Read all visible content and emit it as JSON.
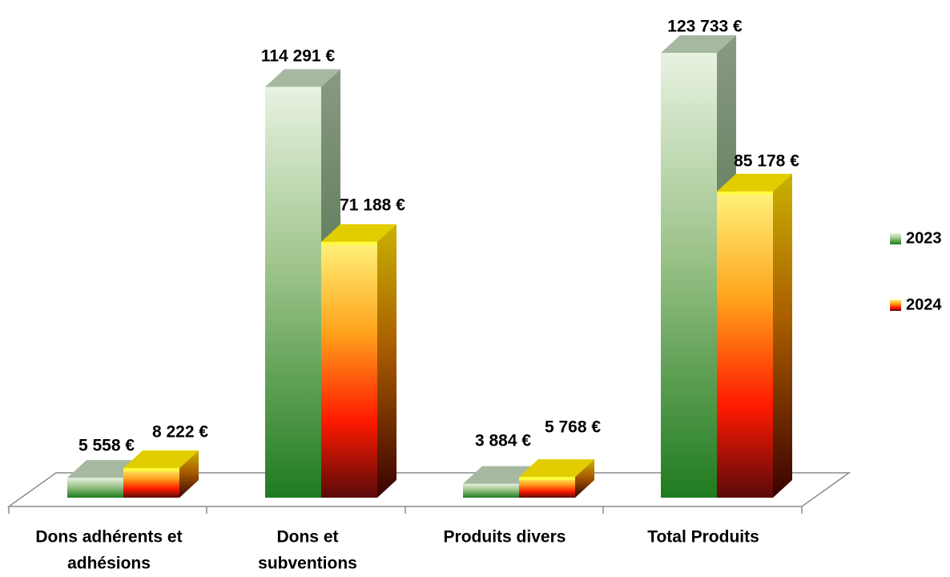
{
  "chart_data": {
    "type": "bar",
    "title": "",
    "xlabel": "",
    "ylabel": "",
    "categories": [
      [
        "Dons adhérents et",
        "adhésions"
      ],
      [
        "Dons et",
        "subventions"
      ],
      [
        "Produits divers"
      ],
      [
        "Total Produits"
      ]
    ],
    "series": [
      {
        "name": "2023",
        "values": [
          5558,
          114291,
          3884,
          123733
        ],
        "labels": [
          "5 558 €",
          "114 291 €",
          "3 884 €",
          "123 733 €"
        ]
      },
      {
        "name": "2024",
        "values": [
          8222,
          71188,
          5768,
          85178
        ],
        "labels": [
          "8 222 €",
          "71 188 €",
          "5 768 €",
          "85 178 €"
        ]
      }
    ],
    "ylim": [
      0,
      130000
    ],
    "grid": false,
    "legend_position": "right",
    "three_d": true
  },
  "colors": {
    "series_2023": {
      "top": "#e6f0df",
      "mid": "#7db069",
      "bottom": "#1e7a1e",
      "side": "#6e8f62",
      "cap": "#a9b9a0"
    },
    "series_2024": {
      "top": "#fff680",
      "mid": "#ff9900",
      "bottom": "#e00000",
      "side": "#a06a00",
      "cap": "#e4d000"
    },
    "axis": "#8c8c8c"
  }
}
